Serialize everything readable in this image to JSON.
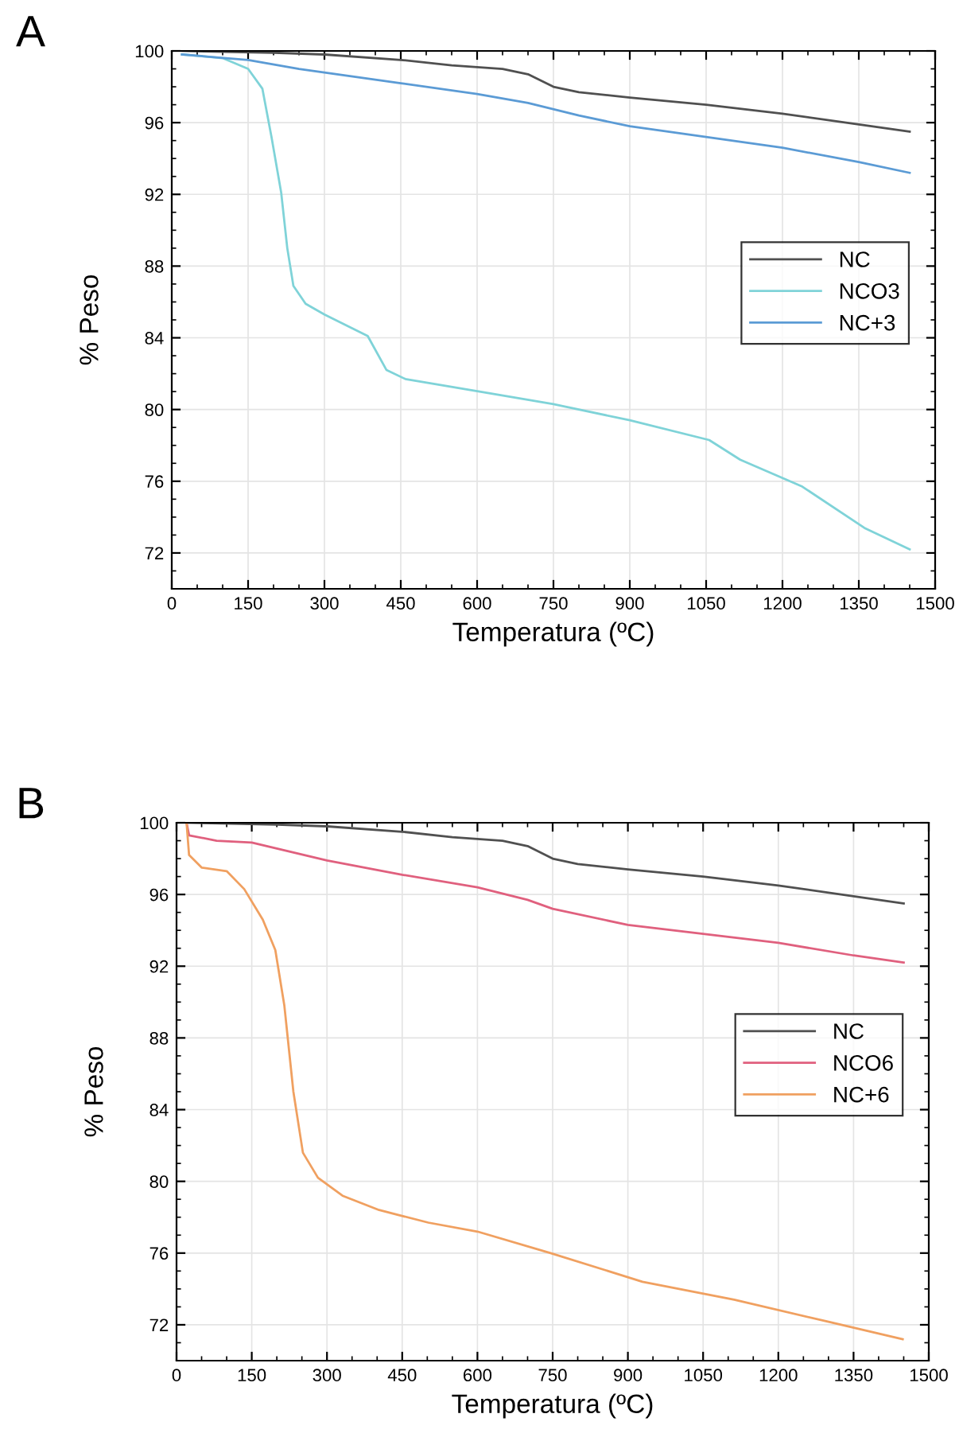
{
  "chart_data": [
    {
      "type": "line",
      "title": "A",
      "xlabel": "Temperatura (ºC)",
      "ylabel": "% Peso",
      "xlim": [
        0,
        1500
      ],
      "xticks": [
        0,
        150,
        300,
        450,
        600,
        750,
        900,
        1050,
        1200,
        1350,
        1500
      ],
      "ylim": [
        70,
        100
      ],
      "yticks": [
        72,
        76,
        80,
        84,
        88,
        92,
        96,
        100
      ],
      "grid": true,
      "legend": "right",
      "series": [
        {
          "name": "NC",
          "color": "#505050",
          "x": [
            20,
            200,
            300,
            450,
            550,
            650,
            700,
            750,
            800,
            900,
            1050,
            1200,
            1350,
            1450
          ],
          "values": [
            100,
            99.9,
            99.8,
            99.5,
            99.2,
            99.0,
            98.7,
            98.0,
            97.7,
            97.4,
            97.0,
            96.5,
            95.9,
            95.5
          ]
        },
        {
          "name": "NCO3",
          "color": "#7fd3d8",
          "x": [
            20,
            100,
            150,
            178,
            196,
            215,
            227,
            239,
            263,
            300,
            385,
            422,
            459,
            605,
            750,
            900,
            1056,
            1117,
            1239,
            1361,
            1450
          ],
          "values": [
            99.8,
            99.6,
            99.0,
            97.9,
            95.2,
            92.1,
            89.0,
            86.9,
            85.9,
            85.3,
            84.1,
            82.2,
            81.7,
            81.0,
            80.3,
            79.4,
            78.3,
            77.2,
            75.7,
            73.4,
            72.2
          ]
        },
        {
          "name": "NC+3",
          "color": "#5b9bd5",
          "x": [
            20,
            150,
            250,
            450,
            600,
            700,
            800,
            900,
            1050,
            1200,
            1350,
            1450
          ],
          "values": [
            99.8,
            99.5,
            99.0,
            98.2,
            97.6,
            97.1,
            96.4,
            95.8,
            95.2,
            94.6,
            93.8,
            93.2
          ]
        }
      ]
    },
    {
      "type": "line",
      "title": "B",
      "xlabel": "Temperatura (ºC)",
      "ylabel": "% Peso",
      "xlim": [
        0,
        1500
      ],
      "xticks": [
        0,
        150,
        300,
        450,
        600,
        750,
        900,
        1050,
        1200,
        1350,
        1500
      ],
      "ylim": [
        70,
        100
      ],
      "yticks": [
        72,
        76,
        80,
        84,
        88,
        92,
        96,
        100
      ],
      "grid": true,
      "legend": "right",
      "series": [
        {
          "name": "NC",
          "color": "#505050",
          "x": [
            20,
            200,
            300,
            450,
            550,
            650,
            700,
            750,
            800,
            900,
            1050,
            1200,
            1350,
            1450
          ],
          "values": [
            100,
            99.9,
            99.8,
            99.5,
            99.2,
            99.0,
            98.7,
            98.0,
            97.7,
            97.4,
            97.0,
            96.5,
            95.9,
            95.5
          ]
        },
        {
          "name": "NCO6",
          "color": "#e0607e",
          "x": [
            20,
            25,
            80,
            150,
            300,
            450,
            600,
            700,
            750,
            900,
            1050,
            1200,
            1350,
            1450
          ],
          "values": [
            100,
            99.3,
            99.0,
            98.9,
            97.9,
            97.1,
            96.4,
            95.7,
            95.2,
            94.3,
            93.8,
            93.3,
            92.6,
            92.2
          ]
        },
        {
          "name": "NC+6",
          "color": "#f0a060",
          "x": [
            20,
            25,
            50,
            100,
            135,
            172,
            197,
            215,
            233,
            252,
            282,
            331,
            404,
            502,
            600,
            746,
            929,
            1112,
            1295,
            1448
          ],
          "values": [
            100,
            98.2,
            97.5,
            97.3,
            96.3,
            94.6,
            92.9,
            89.8,
            85.0,
            81.6,
            80.2,
            79.2,
            78.4,
            77.7,
            77.2,
            76.0,
            74.4,
            73.4,
            72.2,
            71.2
          ]
        }
      ]
    }
  ]
}
